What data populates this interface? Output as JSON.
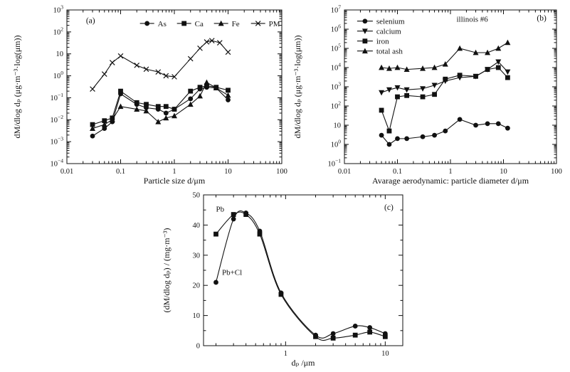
{
  "page": {
    "background": "#ffffff",
    "ink_color": "#111111"
  },
  "chart_data": [
    {
      "id": "a",
      "type": "line",
      "panel_label": "(a)",
      "title": "",
      "xlabel": "Particle size  d/μm",
      "ylabel": "dM/dlog dₚ (μg·m⁻³·log(μm))",
      "grid": false,
      "x_axis": {
        "scale": "log",
        "min": 0.01,
        "max": 100,
        "tick_format": "plain"
      },
      "y_axis": {
        "scale": "log",
        "min": 0.0001,
        "max": 1000,
        "tick_format": "pow"
      },
      "legend": {
        "show": true,
        "position": "top-inside",
        "orientation": "horizontal"
      },
      "series": [
        {
          "name": "As",
          "marker": "circle",
          "x": [
            0.03,
            0.05,
            0.07,
            0.1,
            0.2,
            0.3,
            0.5,
            0.7,
            1,
            2,
            3,
            4,
            6,
            10
          ],
          "y": [
            0.0018,
            0.004,
            0.008,
            0.15,
            0.05,
            0.035,
            0.03,
            0.02,
            0.03,
            0.09,
            0.25,
            0.3,
            0.28,
            0.08
          ]
        },
        {
          "name": "Ca",
          "marker": "square",
          "x": [
            0.03,
            0.05,
            0.07,
            0.1,
            0.2,
            0.3,
            0.5,
            0.7,
            1,
            2,
            3,
            4,
            6,
            10
          ],
          "y": [
            0.006,
            0.009,
            0.012,
            0.2,
            0.06,
            0.05,
            0.04,
            0.04,
            0.03,
            0.2,
            0.3,
            0.35,
            0.3,
            0.22
          ]
        },
        {
          "name": "Fe",
          "marker": "triangle-up",
          "x": [
            0.03,
            0.05,
            0.07,
            0.1,
            0.2,
            0.3,
            0.5,
            0.7,
            1,
            2,
            3,
            4,
            6,
            10
          ],
          "y": [
            0.004,
            0.006,
            0.01,
            0.04,
            0.03,
            0.025,
            0.008,
            0.012,
            0.015,
            0.05,
            0.12,
            0.5,
            0.28,
            0.13
          ]
        },
        {
          "name": "PM",
          "marker": "x",
          "x": [
            0.03,
            0.05,
            0.07,
            0.1,
            0.2,
            0.3,
            0.5,
            0.7,
            1,
            2,
            3,
            4,
            5,
            7,
            10
          ],
          "y": [
            0.25,
            1.2,
            4,
            8,
            3,
            2,
            1.5,
            1.0,
            0.9,
            6,
            18,
            35,
            40,
            32,
            12
          ]
        }
      ],
      "annotations": []
    },
    {
      "id": "b",
      "type": "line",
      "panel_label": "(b)",
      "title": "",
      "xlabel": "Avarage aerodynamic: particle diameter  d/μm",
      "ylabel": "dM/dlog dₚ (μg·m⁻³·log(μm))",
      "grid": false,
      "x_axis": {
        "scale": "log",
        "min": 0.01,
        "max": 100,
        "tick_format": "plain"
      },
      "y_axis": {
        "scale": "log",
        "min": 0.1,
        "max": 10000000,
        "tick_format": "pow"
      },
      "legend": {
        "show": true,
        "position": "top-left-inside",
        "orientation": "vertical"
      },
      "series": [
        {
          "name": "selenium",
          "marker": "circle",
          "x": [
            0.05,
            0.07,
            0.1,
            0.15,
            0.3,
            0.5,
            0.8,
            1.5,
            3,
            5,
            8,
            12
          ],
          "y": [
            3,
            1,
            2,
            2,
            2.5,
            3,
            5,
            20,
            10,
            12,
            12,
            7
          ]
        },
        {
          "name": "calcium",
          "marker": "triangle-down",
          "x": [
            0.05,
            0.07,
            0.1,
            0.15,
            0.3,
            0.5,
            0.8,
            1.5,
            3,
            5,
            8,
            12
          ],
          "y": [
            500,
            700,
            900,
            700,
            800,
            1200,
            2000,
            3000,
            3500,
            8000,
            20000,
            6000
          ]
        },
        {
          "name": "iron",
          "marker": "square",
          "x": [
            0.05,
            0.07,
            0.1,
            0.15,
            0.3,
            0.5,
            0.8,
            1.5,
            3,
            5,
            8,
            12
          ],
          "y": [
            60,
            5,
            300,
            350,
            300,
            400,
            2500,
            4000,
            3500,
            8000,
            10000,
            3000
          ]
        },
        {
          "name": "total ash",
          "marker": "triangle-up",
          "x": [
            0.05,
            0.07,
            0.1,
            0.15,
            0.3,
            0.5,
            0.8,
            1.5,
            3,
            5,
            8,
            12
          ],
          "y": [
            10000,
            9000,
            10000,
            8000,
            9000,
            10000,
            15000,
            100000,
            60000,
            60000,
            100000,
            200000
          ]
        }
      ],
      "annotations": [
        {
          "text": "illinois #6",
          "x": 1.3,
          "y": 2500000
        }
      ]
    },
    {
      "id": "c",
      "type": "line",
      "panel_label": "(c)",
      "title": "",
      "xlabel": "dₚ /μm",
      "ylabel": "(dM/dlog dₚ) / (mg·m⁻³)",
      "grid": false,
      "x_axis": {
        "scale": "log",
        "min": 0.15,
        "max": 15,
        "tick_format": "plain"
      },
      "y_axis": {
        "scale": "linear",
        "min": 0,
        "max": 50,
        "major_step": 10,
        "minor_step": 5
      },
      "legend": {
        "show": false
      },
      "series": [
        {
          "name": "Pb",
          "marker": "square",
          "smooth": true,
          "x": [
            0.2,
            0.3,
            0.4,
            0.55,
            0.9,
            2,
            3,
            5,
            7,
            10
          ],
          "y": [
            37,
            43.5,
            43.5,
            37,
            17,
            3,
            2.5,
            3.5,
            4.5,
            3
          ]
        },
        {
          "name": "Pb+Cl",
          "marker": "circle",
          "smooth": true,
          "x": [
            0.2,
            0.3,
            0.4,
            0.55,
            0.9,
            2,
            3,
            5,
            7,
            10
          ],
          "y": [
            21,
            42,
            44,
            38,
            17.5,
            3.5,
            4,
            6.5,
            6,
            4
          ]
        }
      ],
      "annotations": [
        {
          "text": "Pb",
          "x": 0.2,
          "y": 44.5
        },
        {
          "text": "Pb+Cl",
          "x": 0.23,
          "y": 23.5
        }
      ]
    }
  ]
}
